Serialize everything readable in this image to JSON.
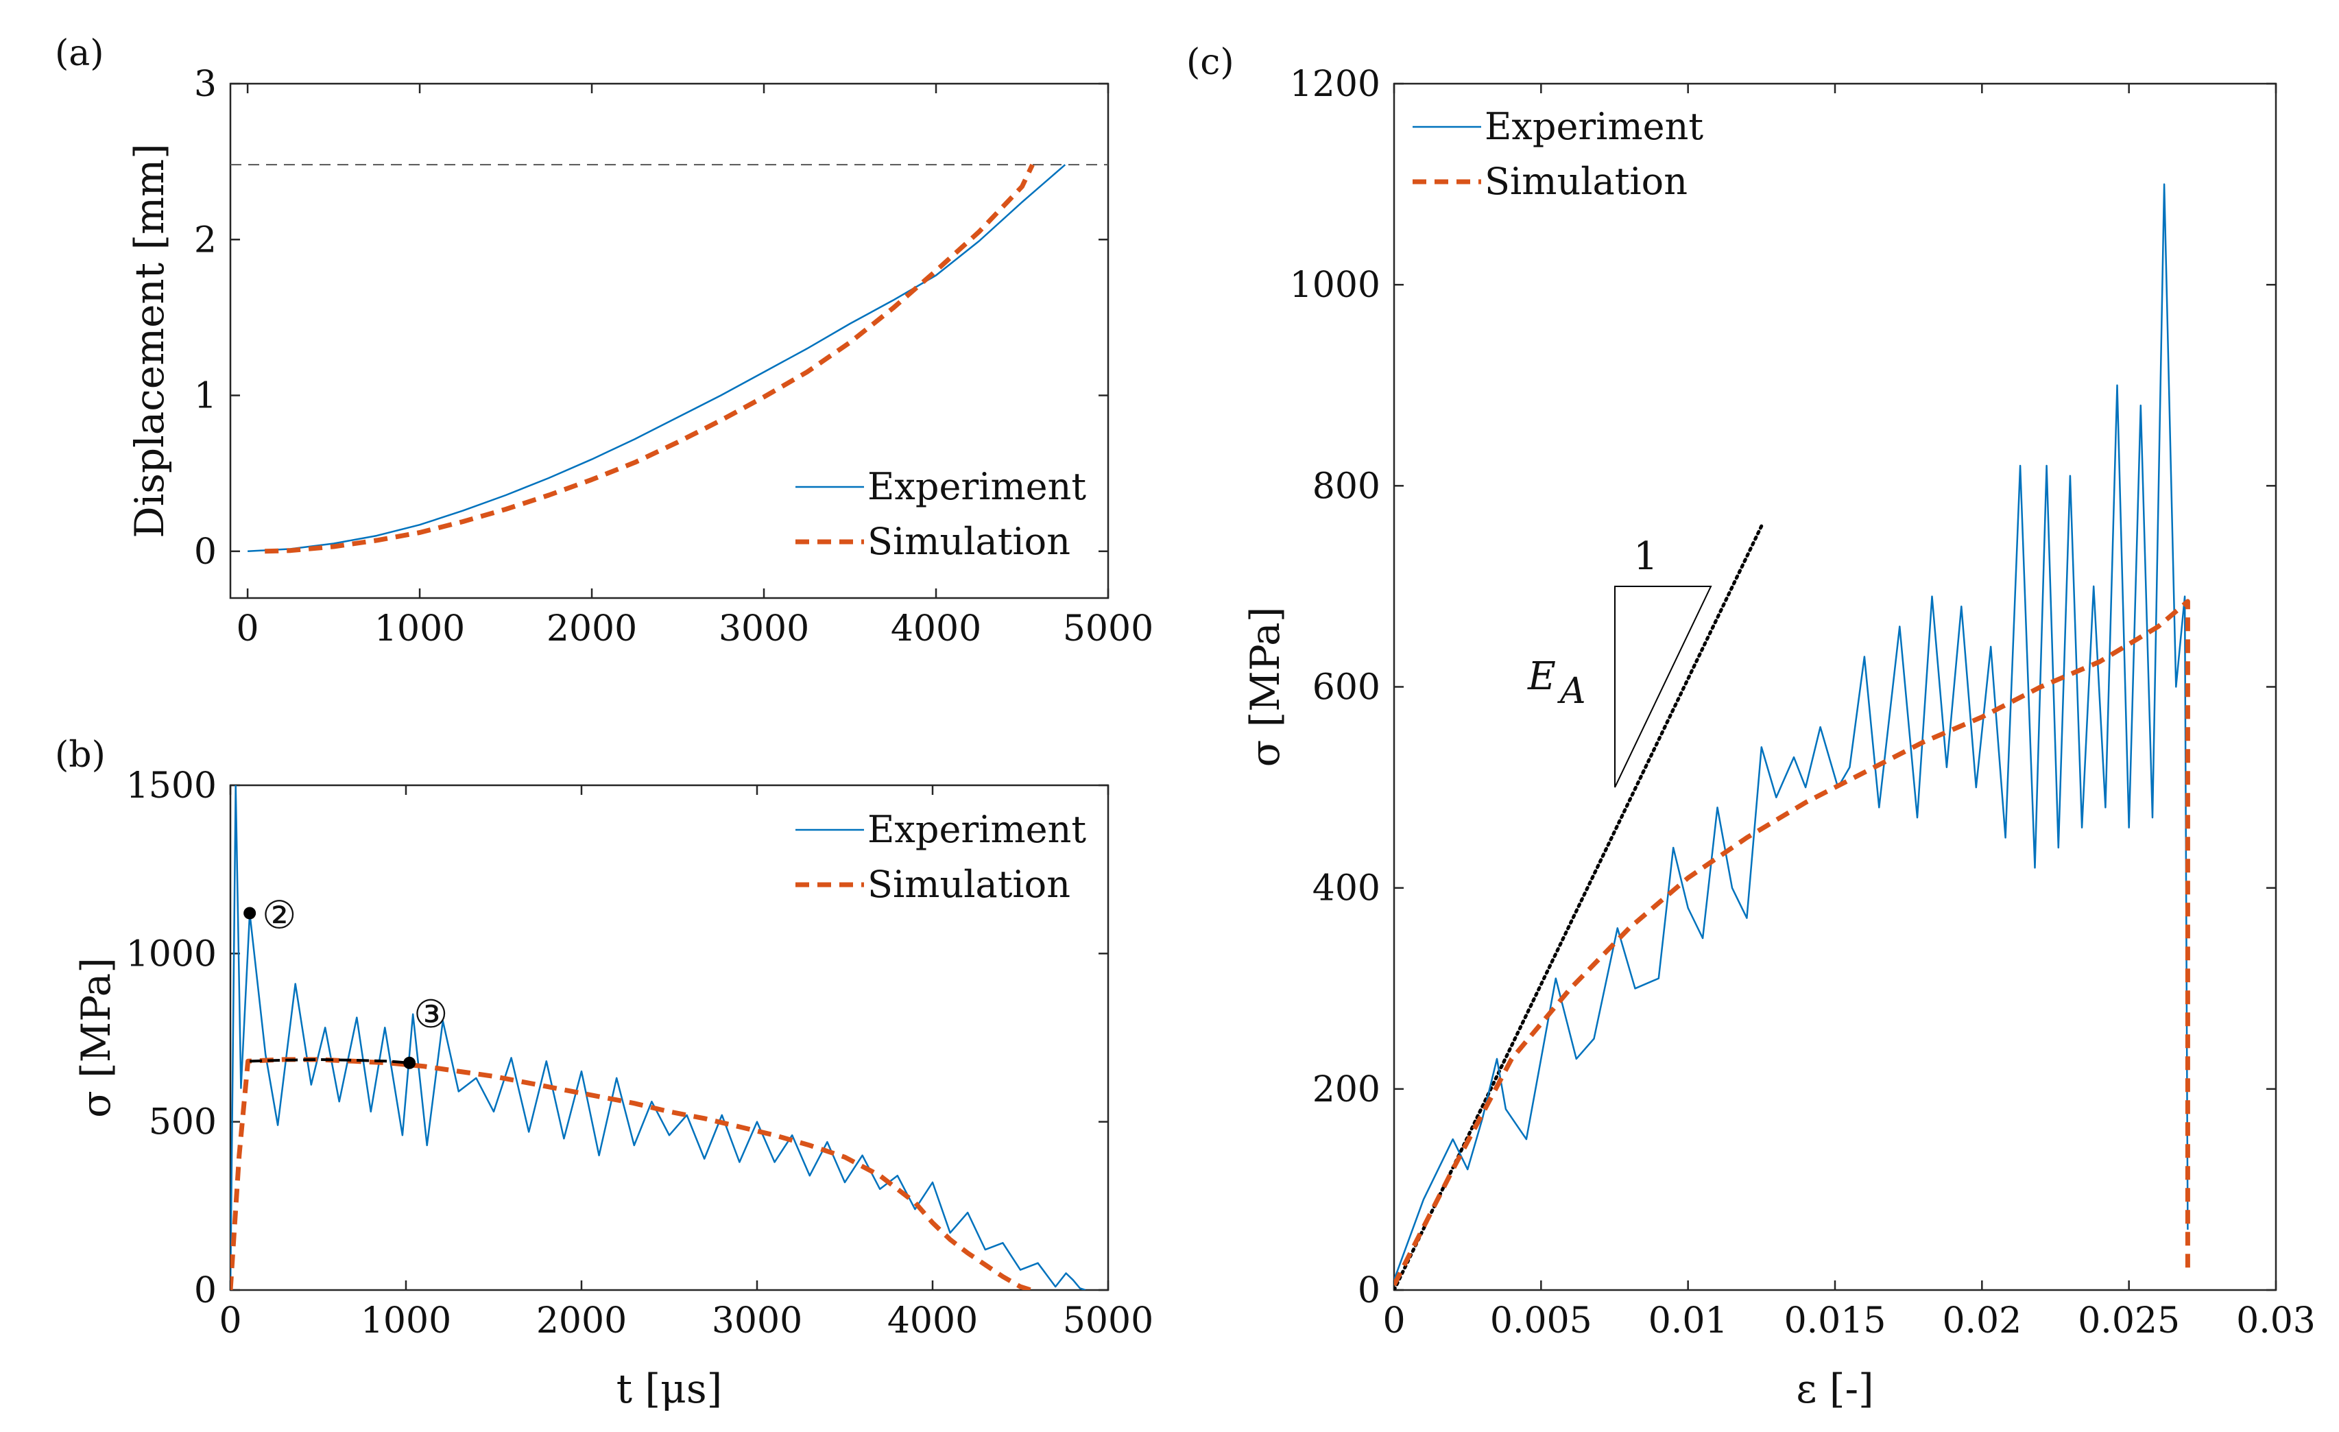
{
  "chart_data": [
    {
      "panel": "(a)",
      "type": "line",
      "xlabel": "",
      "ylabel": "Displacement [mm]",
      "xlim": [
        -100,
        5000
      ],
      "ylim": [
        -0.3,
        3
      ],
      "xticks": [
        "0",
        "1000",
        "2000",
        "3000",
        "4000",
        "5000"
      ],
      "yticks": [
        "0",
        "1",
        "2",
        "3"
      ],
      "reference_line": {
        "y": 2.48,
        "style": "dashed"
      },
      "legend": {
        "position": "bottom-right",
        "entries": [
          "Experiment",
          "Simulation"
        ]
      },
      "series": [
        {
          "name": "Experiment",
          "color": "#0072BD",
          "style": "solid",
          "x": [
            0,
            250,
            500,
            750,
            1000,
            1250,
            1500,
            1750,
            2000,
            2250,
            2500,
            2750,
            3000,
            3250,
            3500,
            3750,
            4000,
            4250,
            4500,
            4750
          ],
          "y": [
            0,
            0.015,
            0.05,
            0.1,
            0.17,
            0.26,
            0.36,
            0.47,
            0.59,
            0.72,
            0.86,
            1.0,
            1.15,
            1.3,
            1.46,
            1.61,
            1.77,
            1.99,
            2.24,
            2.48
          ]
        },
        {
          "name": "Simulation",
          "color": "#D95319",
          "style": "dashed",
          "x": [
            100,
            250,
            500,
            750,
            1000,
            1250,
            1500,
            1750,
            2000,
            2250,
            2500,
            2750,
            3000,
            3250,
            3500,
            3750,
            4000,
            4250,
            4500,
            4560
          ],
          "y": [
            0,
            0.005,
            0.03,
            0.07,
            0.12,
            0.19,
            0.27,
            0.36,
            0.46,
            0.57,
            0.7,
            0.84,
            0.99,
            1.15,
            1.34,
            1.56,
            1.8,
            2.05,
            2.34,
            2.48
          ]
        }
      ]
    },
    {
      "panel": "(b)",
      "type": "line",
      "xlabel": "t [μs]",
      "ylabel": "σ [MPa]",
      "xlim": [
        0,
        5000
      ],
      "ylim": [
        0,
        1500
      ],
      "xticks": [
        "0",
        "1000",
        "2000",
        "3000",
        "4000",
        "5000"
      ],
      "yticks": [
        "0",
        "500",
        "1000",
        "1500"
      ],
      "legend": {
        "position": "top-right",
        "entries": [
          "Experiment",
          "Simulation"
        ]
      },
      "annotations": [
        {
          "label": "②",
          "x": 110,
          "y": 1120
        },
        {
          "label": "③",
          "x": 1020,
          "y": 675
        }
      ],
      "marker_segment": {
        "x": [
          110,
          300,
          500,
          700,
          900,
          1020
        ],
        "y": [
          680,
          683,
          685,
          683,
          680,
          675
        ]
      },
      "series": [
        {
          "name": "Experiment",
          "color": "#0072BD",
          "style": "solid",
          "x": [
            0,
            30,
            60,
            110,
            200,
            270,
            370,
            460,
            540,
            620,
            720,
            800,
            880,
            980,
            1040,
            1120,
            1210,
            1300,
            1400,
            1500,
            1600,
            1700,
            1800,
            1900,
            2000,
            2100,
            2200,
            2300,
            2400,
            2500,
            2600,
            2700,
            2800,
            2900,
            3000,
            3100,
            3200,
            3300,
            3400,
            3500,
            3600,
            3700,
            3800,
            3900,
            4000,
            4100,
            4200,
            4300,
            4400,
            4500,
            4600,
            4700,
            4760,
            4800,
            4840,
            4870
          ],
          "y": [
            0,
            1500,
            600,
            1120,
            700,
            490,
            910,
            610,
            780,
            560,
            810,
            530,
            780,
            460,
            820,
            430,
            800,
            590,
            630,
            530,
            690,
            470,
            680,
            450,
            650,
            400,
            630,
            430,
            560,
            460,
            520,
            390,
            520,
            380,
            500,
            380,
            460,
            340,
            440,
            320,
            400,
            300,
            340,
            240,
            320,
            170,
            230,
            120,
            140,
            60,
            80,
            10,
            50,
            30,
            5,
            0
          ]
        },
        {
          "name": "Simulation",
          "color": "#D95319",
          "style": "dashed",
          "x": [
            0,
            50,
            100,
            300,
            500,
            700,
            900,
            1100,
            1300,
            1500,
            1700,
            1900,
            2100,
            2300,
            2500,
            2700,
            2900,
            3100,
            3300,
            3500,
            3700,
            3900,
            4000,
            4100,
            4200,
            4300,
            4400,
            4500,
            4560
          ],
          "y": [
            0,
            400,
            680,
            685,
            685,
            680,
            675,
            665,
            650,
            635,
            615,
            595,
            575,
            555,
            530,
            510,
            485,
            460,
            430,
            395,
            340,
            260,
            200,
            150,
            110,
            75,
            40,
            10,
            0
          ]
        }
      ]
    },
    {
      "panel": "(c)",
      "type": "line",
      "xlabel": "ε [-]",
      "ylabel": "σ [MPa]",
      "xlim": [
        0,
        0.03
      ],
      "ylim": [
        0,
        1200
      ],
      "xticks": [
        "0",
        "0.005",
        "0.01",
        "0.015",
        "0.02",
        "0.025",
        "0.03"
      ],
      "yticks": [
        "0",
        "200",
        "400",
        "600",
        "800",
        "1000",
        "1200"
      ],
      "legend": {
        "position": "top-left",
        "entries": [
          "Experiment",
          "Simulation"
        ]
      },
      "slope_triangle": {
        "top_label": "1",
        "side_label": "E",
        "side_label_subscript": "A"
      },
      "modulus_line": {
        "color": "#000000",
        "style": "dotted",
        "x": [
          0,
          0.0125
        ],
        "y": [
          0,
          760
        ]
      },
      "series": [
        {
          "name": "Experiment",
          "color": "#0072BD",
          "style": "solid",
          "x": [
            0,
            0.001,
            0.002,
            0.0025,
            0.003,
            0.0035,
            0.0038,
            0.0045,
            0.0055,
            0.0062,
            0.0068,
            0.0076,
            0.0082,
            0.009,
            0.0095,
            0.01,
            0.0105,
            0.011,
            0.0115,
            0.012,
            0.0125,
            0.013,
            0.0136,
            0.014,
            0.0145,
            0.0151,
            0.0155,
            0.016,
            0.0165,
            0.0172,
            0.0178,
            0.0183,
            0.0188,
            0.0193,
            0.0198,
            0.0203,
            0.0208,
            0.0213,
            0.0218,
            0.0222,
            0.0226,
            0.023,
            0.0234,
            0.0238,
            0.0242,
            0.0246,
            0.025,
            0.0254,
            0.0258,
            0.0262,
            0.0266,
            0.0269,
            0.027
          ],
          "y": [
            10,
            90,
            150,
            120,
            170,
            230,
            180,
            150,
            310,
            230,
            250,
            360,
            300,
            310,
            440,
            380,
            350,
            480,
            400,
            370,
            540,
            490,
            530,
            500,
            560,
            500,
            520,
            630,
            480,
            660,
            470,
            690,
            520,
            680,
            500,
            640,
            450,
            820,
            420,
            820,
            440,
            810,
            460,
            700,
            480,
            900,
            460,
            880,
            470,
            1100,
            600,
            690,
            60
          ]
        },
        {
          "name": "Simulation",
          "color": "#D95319",
          "style": "dashed",
          "x": [
            0,
            0.002,
            0.004,
            0.006,
            0.008,
            0.01,
            0.012,
            0.014,
            0.016,
            0.018,
            0.02,
            0.022,
            0.024,
            0.026,
            0.027,
            0.027
          ],
          "y": [
            5,
            120,
            230,
            300,
            360,
            410,
            450,
            485,
            515,
            545,
            570,
            600,
            625,
            660,
            685,
            20
          ]
        }
      ]
    }
  ]
}
